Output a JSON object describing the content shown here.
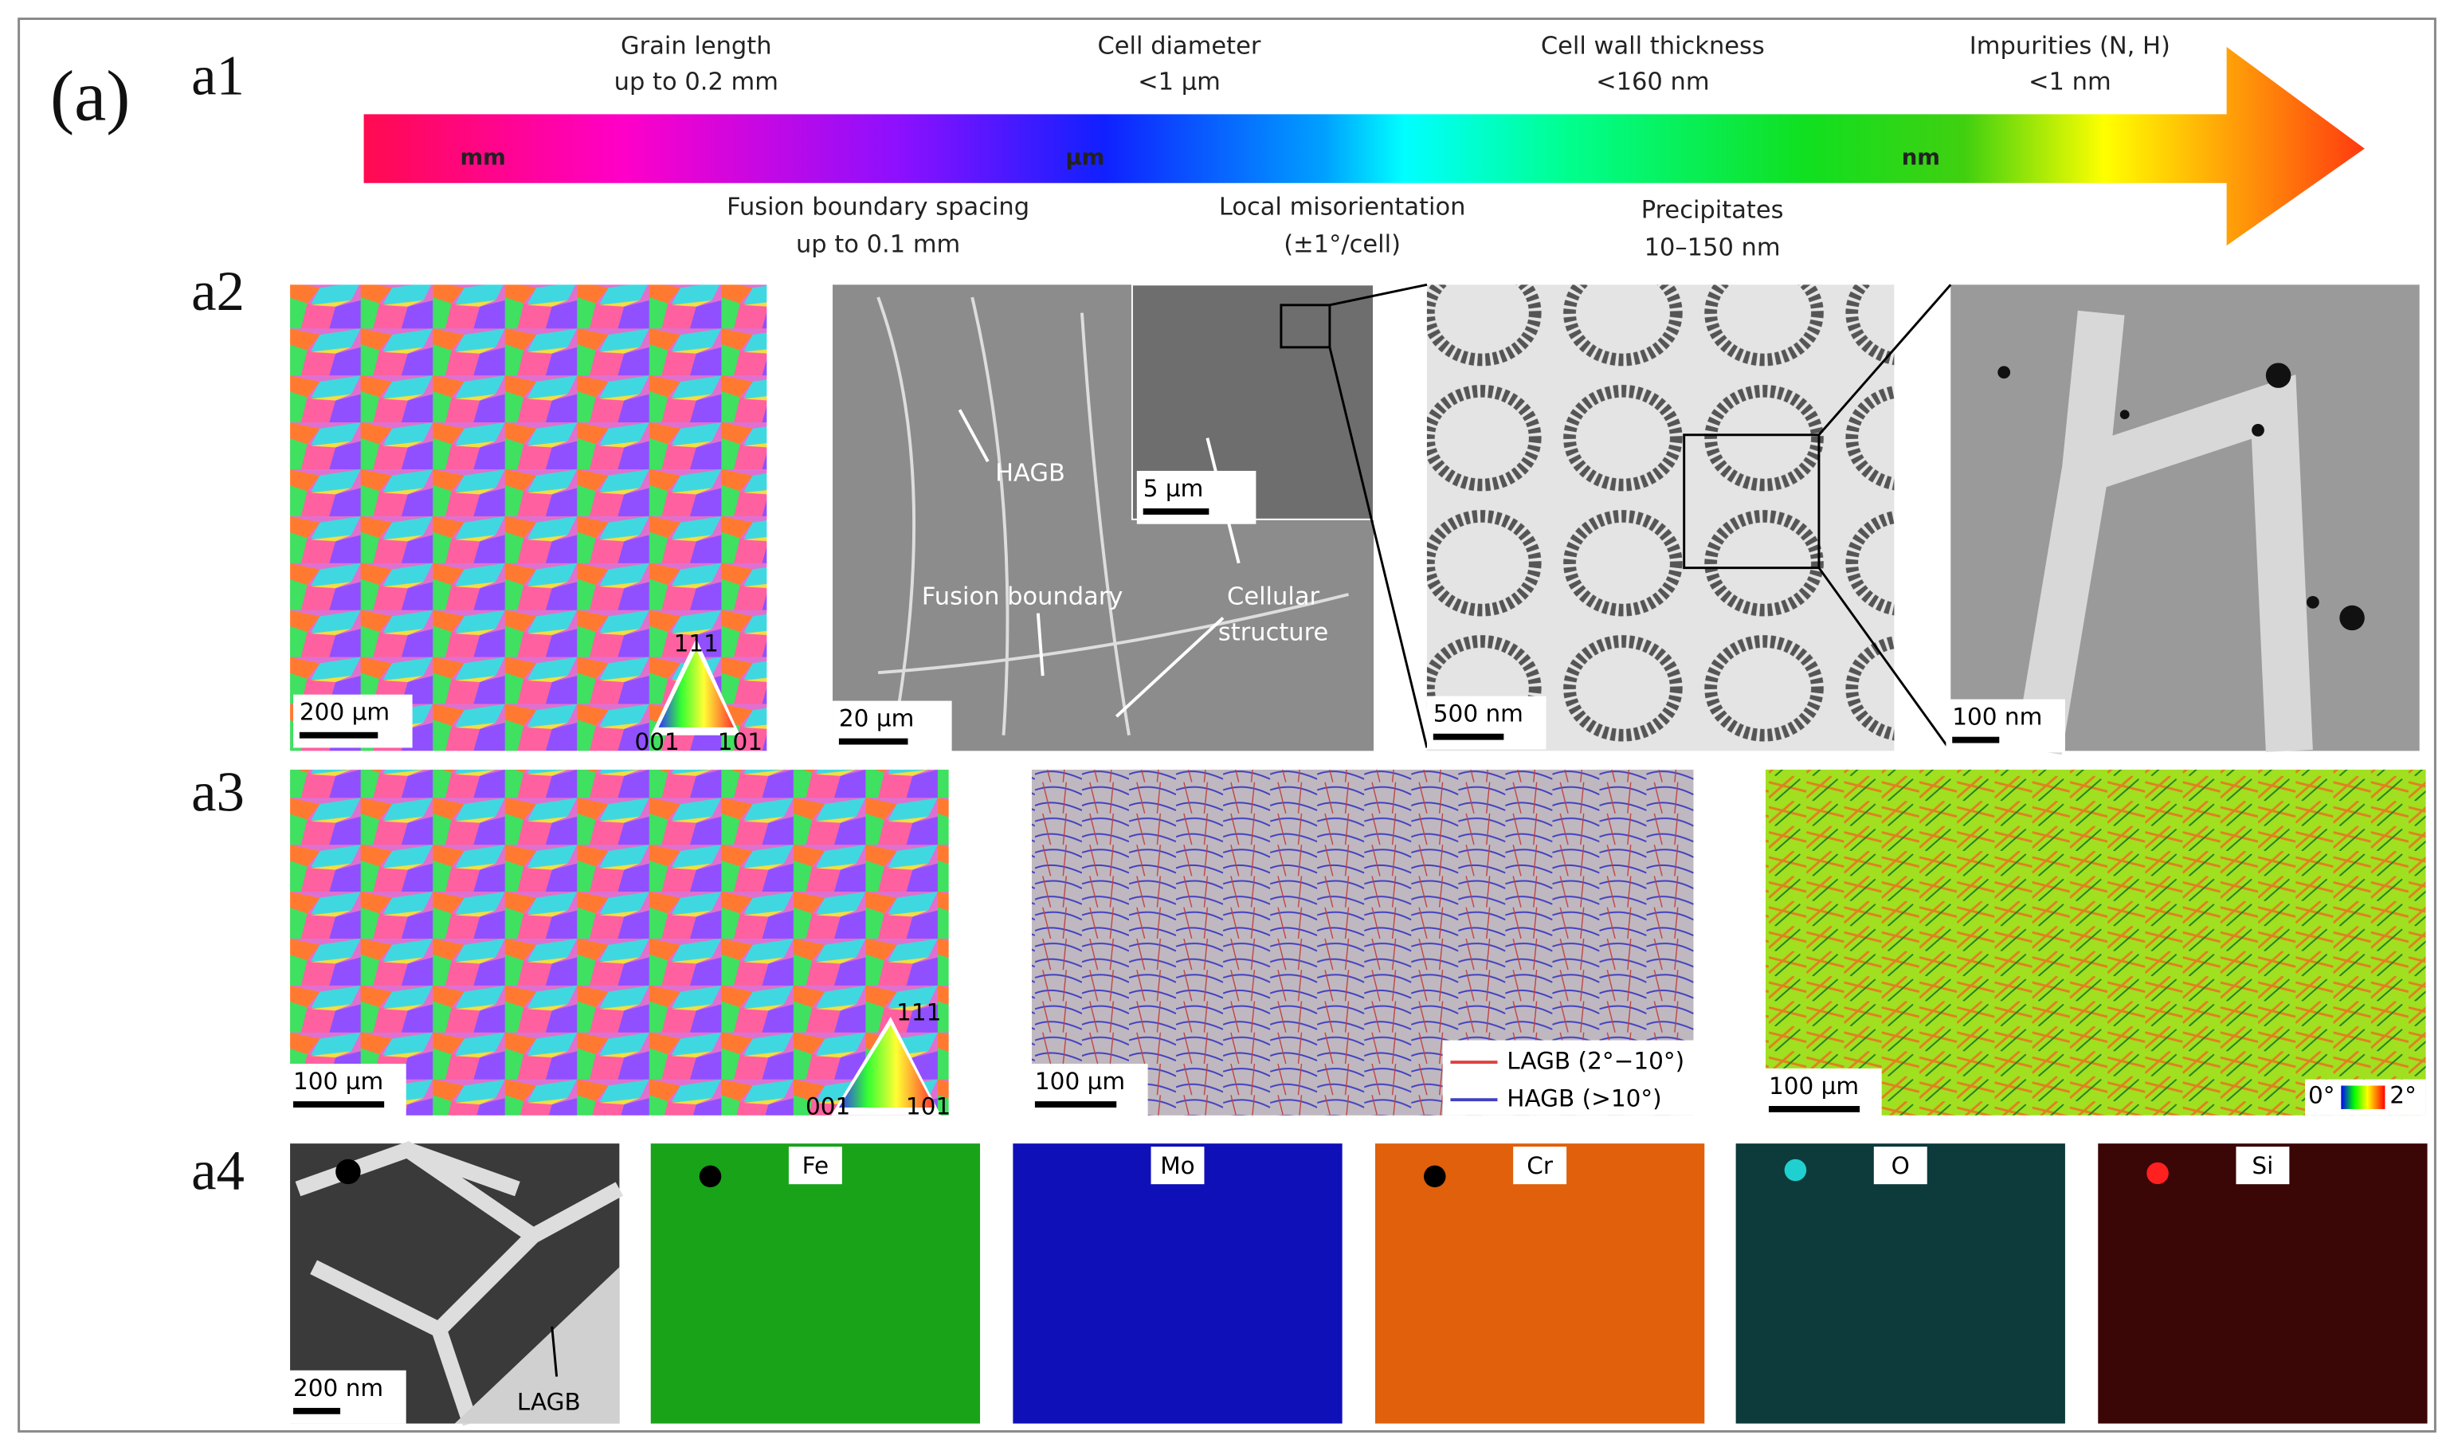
{
  "panel_label": "(a)",
  "row_labels": [
    "a1",
    "a2",
    "a3",
    "a4"
  ],
  "a1": {
    "units": [
      "mm",
      "µm",
      "nm"
    ],
    "top_labels": [
      {
        "title": "Grain length",
        "value": "up to 0.2 mm"
      },
      {
        "title": "Cell diameter",
        "value": "<1 µm"
      },
      {
        "title": "Cell wall thickness",
        "value": "<160 nm"
      },
      {
        "title": "Impurities (N, H)",
        "value": "<1 nm"
      }
    ],
    "bottom_labels": [
      {
        "title": "Fusion boundary spacing",
        "value": "up to 0.1 mm"
      },
      {
        "title": "Local misorientation",
        "value": "(±1°/cell)"
      },
      {
        "title": "Precipitates",
        "value": "10–150 nm"
      }
    ]
  },
  "a2": {
    "scale_bars": [
      "200 µm",
      "20 µm",
      "5 µm",
      "500 nm",
      "100 nm"
    ],
    "ipf": [
      "111",
      "001",
      "101"
    ],
    "annotations": {
      "hagb": "HAGB",
      "fusion": "Fusion boundary",
      "cellular": [
        "Cellular",
        "structure"
      ]
    }
  },
  "a3": {
    "scale_bars": [
      "100 µm",
      "100 µm",
      "100 µm"
    ],
    "ipf": [
      "111",
      "001",
      "101"
    ],
    "legend": [
      "LAGB (2°−10°)",
      "HAGB (>10°)"
    ],
    "colorbar": [
      "0°",
      "2°"
    ]
  },
  "a4": {
    "scale_bar": "200 nm",
    "annotation": "LAGB",
    "maps": [
      "Fe",
      "Mo",
      "Cr",
      "O",
      "Si"
    ]
  }
}
